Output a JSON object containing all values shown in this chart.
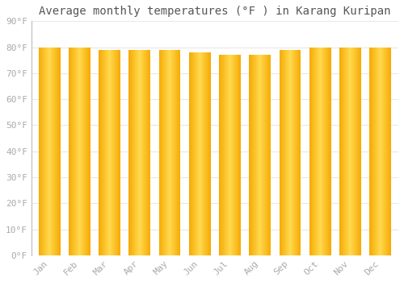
{
  "title": "Average monthly temperatures (°F ) in Karang Kuripan",
  "months": [
    "Jan",
    "Feb",
    "Mar",
    "Apr",
    "May",
    "Jun",
    "Jul",
    "Aug",
    "Sep",
    "Oct",
    "Nov",
    "Dec"
  ],
  "values": [
    80,
    80,
    79,
    79,
    79,
    78,
    77,
    77,
    79,
    80,
    80,
    80
  ],
  "bar_center_color": "#FFD84D",
  "bar_edge_color": "#F5A800",
  "background_color": "#ffffff",
  "grid_color": "#e8e8e8",
  "tick_color": "#aaaaaa",
  "title_color": "#555555",
  "ylim": [
    0,
    90
  ],
  "ytick_step": 10,
  "title_fontsize": 10,
  "tick_fontsize": 8,
  "bar_width": 0.72
}
